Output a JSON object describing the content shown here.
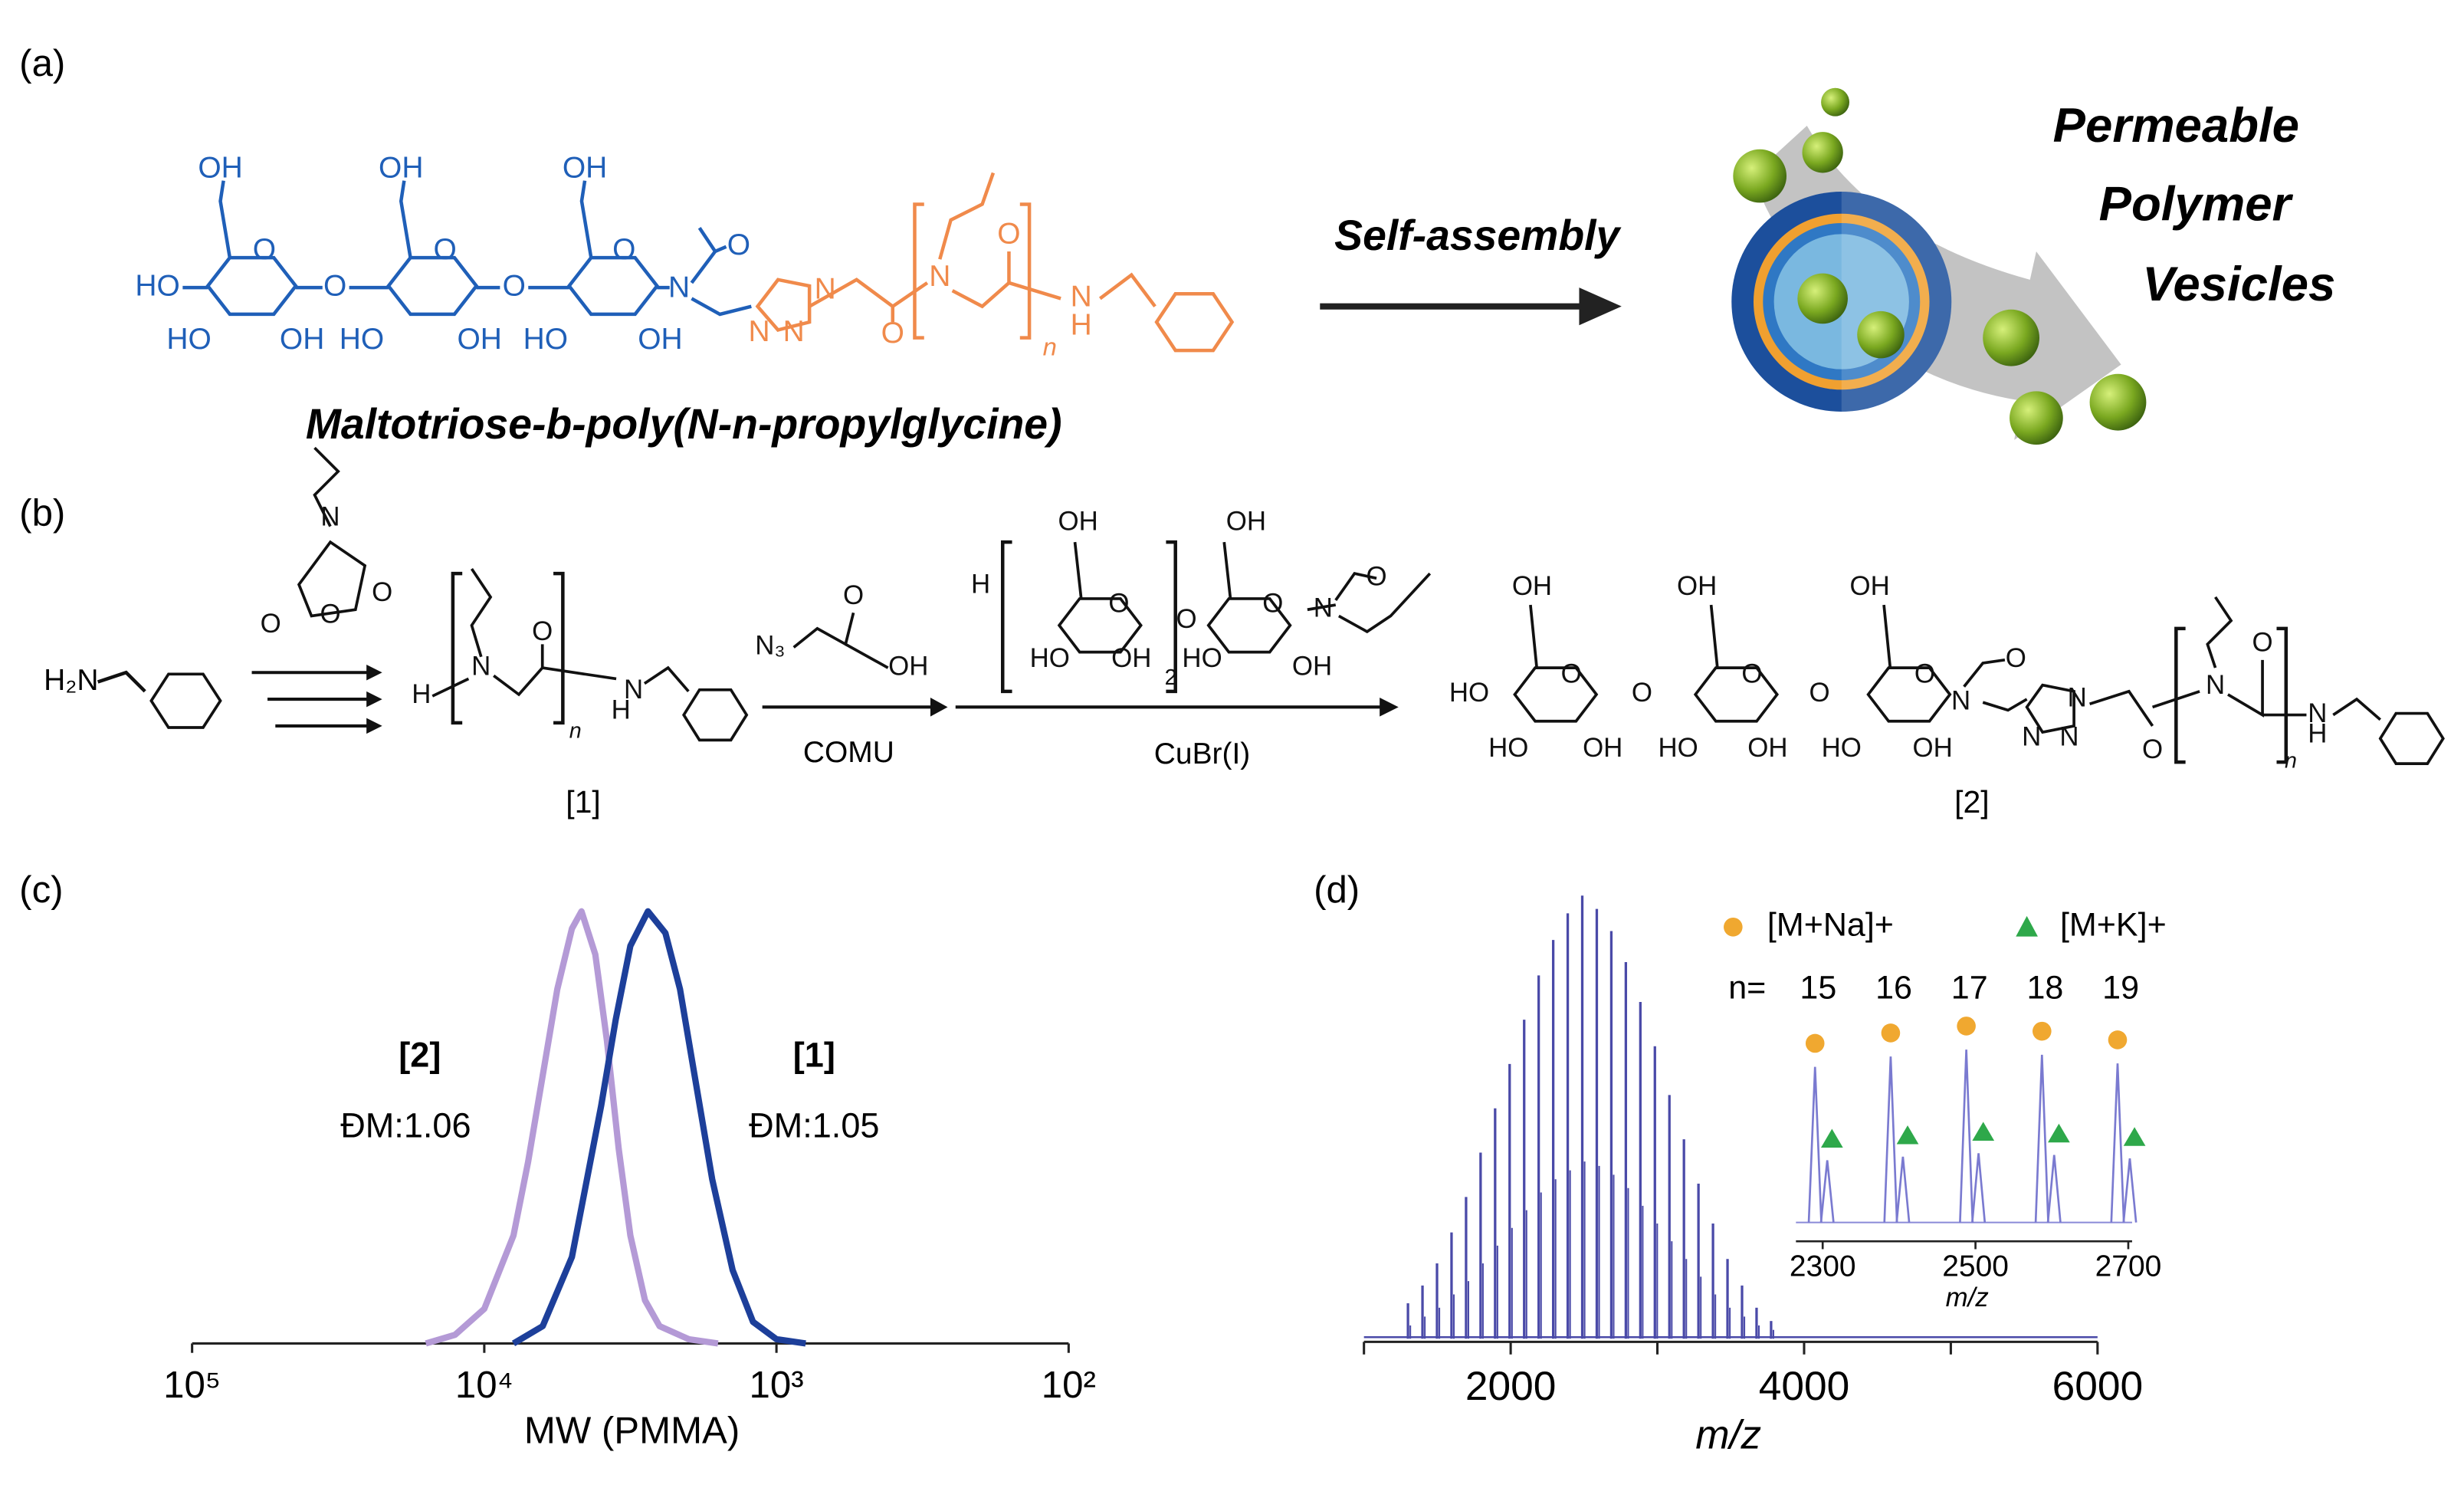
{
  "panel_labels": [
    "(a)",
    "(b)",
    "(c)",
    "(d)"
  ],
  "scheme_a": {
    "structure_atoms": [
      "OH",
      "OH",
      "OH",
      "O",
      "O",
      "O",
      "HO",
      "O",
      "O",
      "N",
      "O",
      "HO",
      "OH",
      "HO",
      "OH",
      "HO",
      "OH"
    ],
    "polymer_atoms": [
      "N",
      "N",
      "N",
      "O",
      "N",
      "O",
      "N",
      "H",
      "n"
    ],
    "caption": "Maltotriose-b-poly(N-n-propylglycine)",
    "arrow_label": "Self-assembly",
    "product": [
      "Permeable",
      "Polymer",
      "Vesicles"
    ]
  },
  "scheme_b": {
    "amine": "H₂N",
    "nca_atoms": [
      "N",
      "O",
      "O",
      "O"
    ],
    "compound_1_atoms": [
      "H",
      "N",
      "O",
      "n",
      "N",
      "H"
    ],
    "compound_1_label": "[1]",
    "azide_atoms": [
      "N₃",
      "O",
      "OH"
    ],
    "reagent_1": "COMU",
    "alkyne_atoms": [
      "OH",
      "OH",
      "H",
      "O",
      "O",
      "O",
      "N",
      "O",
      "HO",
      "OH",
      "2",
      "HO",
      "OH"
    ],
    "reagent_2": "CuBr(I)",
    "compound_2_atoms": [
      "OH",
      "OH",
      "OH",
      "HO",
      "O",
      "O",
      "N",
      "O",
      "HO",
      "OH",
      "HO",
      "OH",
      "HO",
      "OH",
      "N",
      "N",
      "N",
      "O",
      "N",
      "O",
      "N",
      "H",
      "n",
      "O",
      "O",
      "O"
    ],
    "compound_2_label": "[2]"
  },
  "chart_data": [
    {
      "type": "line",
      "xlabel": "MW (PMMA)",
      "xscale": "log",
      "xlim": [
        100000,
        100
      ],
      "ylim": [
        0,
        1
      ],
      "xticks": [
        {
          "value": 100000,
          "label": "10⁵"
        },
        {
          "value": 10000,
          "label": "10⁴"
        },
        {
          "value": 1000,
          "label": "10³"
        },
        {
          "value": 100,
          "label": "10²"
        }
      ],
      "series": [
        {
          "name": "[2]",
          "annotation": "ĐM:1.06",
          "color": "#b49ad6",
          "x": [
            15849,
            12589,
            10000,
            7943,
            7079,
            6310,
            5623,
            5012,
            4645,
            4169,
            3802,
            3467,
            3162,
            2818,
            2512,
            1995,
            1585
          ],
          "values": [
            0,
            0.02,
            0.08,
            0.25,
            0.42,
            0.62,
            0.82,
            0.96,
            1,
            0.9,
            0.7,
            0.45,
            0.25,
            0.1,
            0.04,
            0.01,
            0
          ]
        },
        {
          "name": "[1]",
          "annotation": "ĐM:1.05",
          "color": "#1d3f9a",
          "x": [
            7943,
            6310,
            5012,
            3981,
            3548,
            3162,
            2754,
            2399,
            2138,
            1905,
            1660,
            1413,
            1202,
            1000,
            794
          ],
          "values": [
            0,
            0.04,
            0.2,
            0.55,
            0.75,
            0.92,
            1,
            0.95,
            0.82,
            0.62,
            0.38,
            0.17,
            0.05,
            0.01,
            0
          ]
        }
      ]
    },
    {
      "type": "stem",
      "xlabel": "m/z",
      "line_color": "#4a4aa8",
      "xlim": [
        1000,
        6000
      ],
      "ylim": [
        0,
        100
      ],
      "xticks": [
        2000,
        4000,
        6000
      ],
      "minor_xticks": [
        1000,
        3000,
        5000
      ],
      "series": [
        {
          "name": "[M+Na]+",
          "marker": "circle",
          "color": "#f0a830",
          "x": [
            1300,
            1399,
            1498,
            1597,
            1696,
            1795,
            1894,
            1993,
            2092,
            2191,
            2290,
            2389,
            2488,
            2587,
            2686,
            2785,
            2884,
            2983,
            3082,
            3181,
            3280,
            3379,
            3478,
            3577,
            3676,
            3775
          ],
          "values": [
            8,
            12,
            17,
            24,
            32,
            42,
            52,
            62,
            72,
            82,
            90,
            96,
            100,
            97,
            92,
            85,
            76,
            66,
            55,
            45,
            35,
            26,
            18,
            12,
            7,
            4
          ]
        },
        {
          "name": "[M+K]+",
          "marker": "triangle",
          "color": "#2ea84a",
          "x": [
            1316,
            1415,
            1514,
            1613,
            1712,
            1811,
            1910,
            2009,
            2108,
            2207,
            2306,
            2405,
            2504,
            2603,
            2702,
            2801,
            2900,
            2999,
            3098,
            3197,
            3296,
            3395,
            3494,
            3593,
            3692,
            3791
          ],
          "values": [
            3,
            5,
            7,
            10,
            13,
            17,
            21,
            25,
            29,
            33,
            36,
            38,
            40,
            39,
            37,
            34,
            30,
            26,
            22,
            18,
            14,
            10,
            7,
            5,
            3,
            2
          ]
        }
      ],
      "inset": {
        "xlabel": "m/z",
        "xlim": [
          2265,
          2705
        ],
        "xticks": [
          2300,
          2500,
          2700
        ],
        "n_label": "n=",
        "n": [
          15,
          16,
          17,
          18,
          19
        ]
      }
    }
  ]
}
